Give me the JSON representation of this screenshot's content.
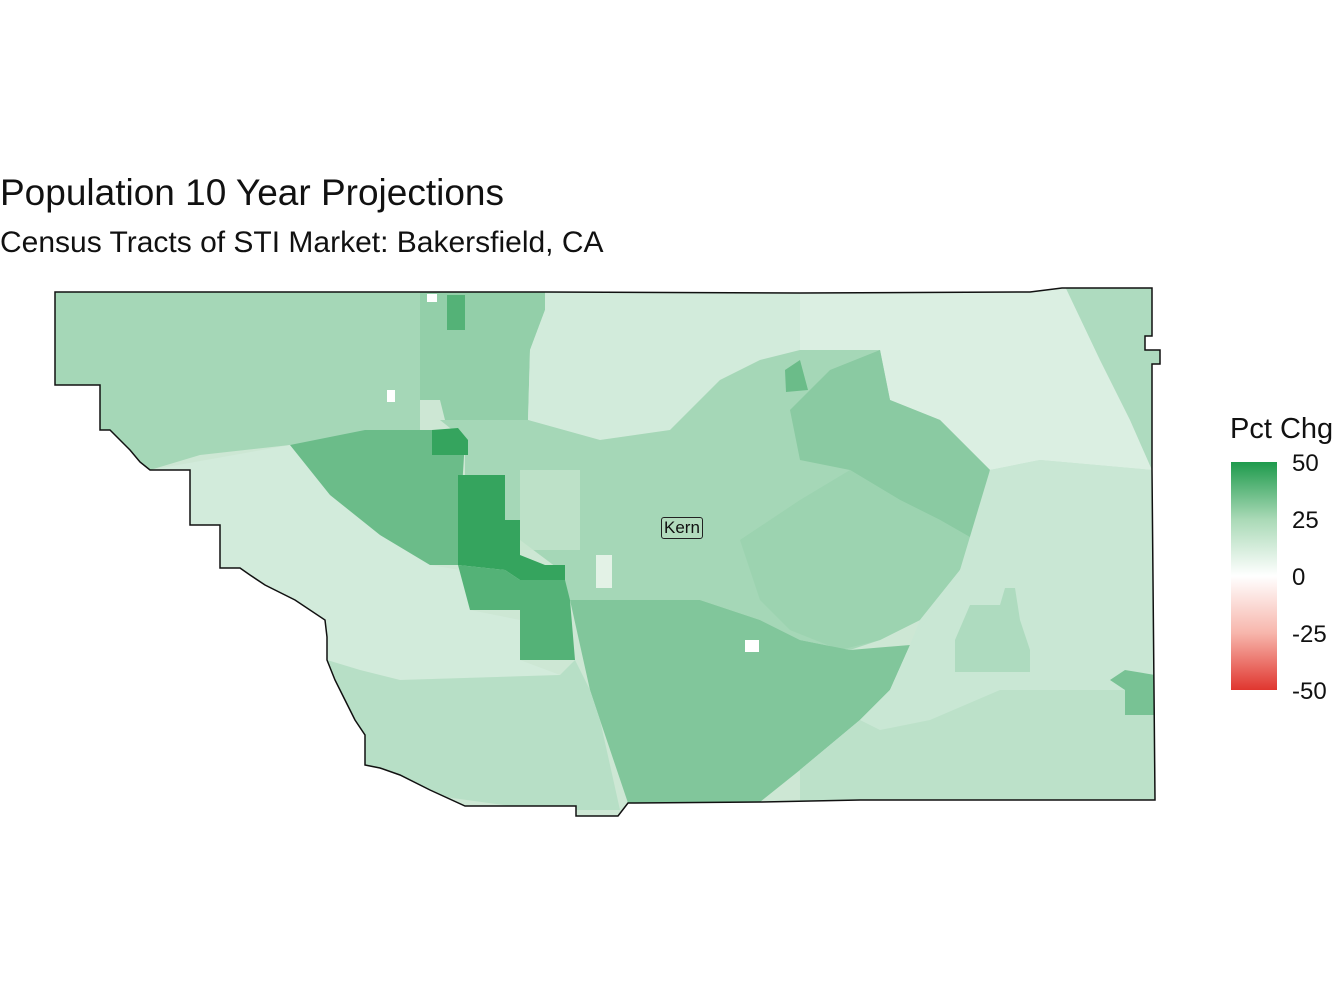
{
  "title": "Population 10 Year Projections",
  "subtitle": "Census Tracts of STI Market: Bakersfield, CA",
  "county_label": "Kern",
  "legend": {
    "title": "Pct Chg",
    "ticks": [
      "50",
      "25",
      "0",
      "-25",
      "-50"
    ],
    "tick_values": [
      50,
      25,
      0,
      -25,
      -50
    ],
    "range": [
      -50,
      50
    ],
    "colors": {
      "high": "#1e9a4c",
      "mid": "#ffffff",
      "low": "#e0362f"
    }
  },
  "map": {
    "region": "Kern County census tracts",
    "fill_variable": "Pct Chg",
    "tract_values": {
      "north_west": 20,
      "north_central": 24,
      "north_east": 8,
      "far_east_strip": 18,
      "west_valley": 10,
      "west_block": 33,
      "bakersfield_core_sw": 45,
      "south_of_city": 38,
      "central": 20,
      "center_east": 22,
      "east_mountains": 26,
      "south_central": 28,
      "south_west": 16,
      "south_east": 12,
      "east_desert": 12,
      "far_east_south": 15,
      "east_cluster": 18,
      "se_block": 30
    }
  }
}
